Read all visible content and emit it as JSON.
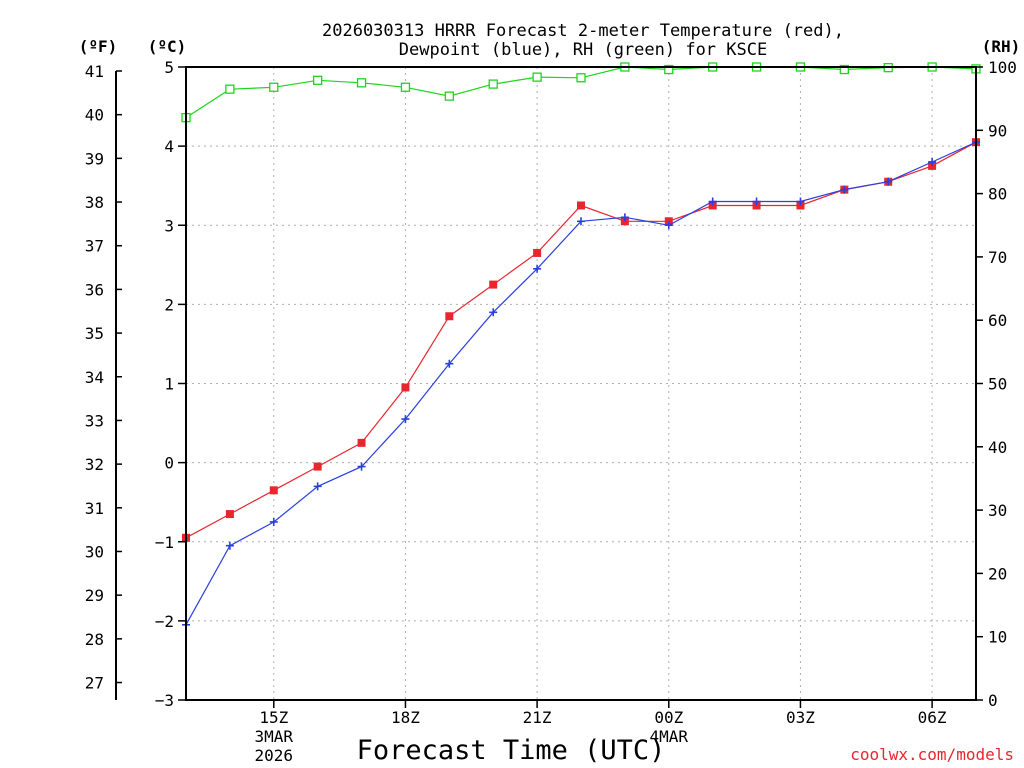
{
  "chart_data": {
    "type": "line",
    "title_line1": "2026030313 HRRR Forecast 2-meter Temperature (red),",
    "title_line2": "Dewpoint (blue), RH (green) for KSCE",
    "xlabel": "Forecast Time (UTC)",
    "watermark": "coolwx.com/models",
    "unit_labels": {
      "fahrenheit": "(ºF)",
      "celsius": "(ºC)",
      "rh": "(RH)"
    },
    "x_hours": [
      13,
      14,
      15,
      16,
      17,
      18,
      19,
      20,
      21,
      22,
      23,
      24,
      25,
      26,
      27,
      28,
      29,
      30,
      31
    ],
    "x_range": [
      13,
      31
    ],
    "x_ticks": [
      {
        "hour": 15,
        "label": "15Z",
        "sub1": "3MAR",
        "sub2": "2026"
      },
      {
        "hour": 18,
        "label": "18Z",
        "sub1": "",
        "sub2": ""
      },
      {
        "hour": 21,
        "label": "21Z",
        "sub1": "",
        "sub2": ""
      },
      {
        "hour": 24,
        "label": "00Z",
        "sub1": "4MAR",
        "sub2": ""
      },
      {
        "hour": 27,
        "label": "03Z",
        "sub1": "",
        "sub2": ""
      },
      {
        "hour": 30,
        "label": "06Z",
        "sub1": "",
        "sub2": ""
      }
    ],
    "celsius_axis": {
      "range": [
        -3,
        5
      ],
      "ticks": [
        -3,
        -2,
        -1,
        0,
        1,
        2,
        3,
        4,
        5
      ]
    },
    "fahrenheit_axis": {
      "range": [
        26.6,
        41
      ],
      "ticks": [
        27,
        28,
        29,
        30,
        31,
        32,
        33,
        34,
        35,
        36,
        37,
        38,
        39,
        40,
        41
      ]
    },
    "rh_axis": {
      "range": [
        0,
        100
      ],
      "ticks": [
        0,
        10,
        20,
        30,
        40,
        50,
        60,
        70,
        80,
        90,
        100
      ]
    },
    "series": [
      {
        "name": "Temperature",
        "axis": "celsius",
        "color": "#e8262e",
        "marker": "square-filled",
        "values": [
          -0.95,
          -0.65,
          -0.35,
          -0.05,
          0.25,
          0.95,
          1.85,
          2.25,
          2.65,
          3.25,
          3.05,
          3.05,
          3.25,
          3.25,
          3.25,
          3.45,
          3.55,
          3.75,
          4.05
        ]
      },
      {
        "name": "Dewpoint",
        "axis": "celsius",
        "color": "#2a3fe0",
        "marker": "plus",
        "values": [
          -2.05,
          -1.05,
          -0.75,
          -0.3,
          -0.05,
          0.55,
          1.25,
          1.9,
          2.45,
          3.05,
          3.1,
          3.0,
          3.3,
          3.3,
          3.3,
          3.45,
          3.55,
          3.8,
          4.05
        ]
      },
      {
        "name": "RH",
        "axis": "rh",
        "color": "#1ed41e",
        "marker": "square-open",
        "values": [
          92,
          96.5,
          96.8,
          97.9,
          97.5,
          96.8,
          95.4,
          97.3,
          98.4,
          98.3,
          100,
          99.6,
          100,
          100,
          100,
          99.6,
          99.9,
          100,
          99.7
        ]
      }
    ]
  }
}
